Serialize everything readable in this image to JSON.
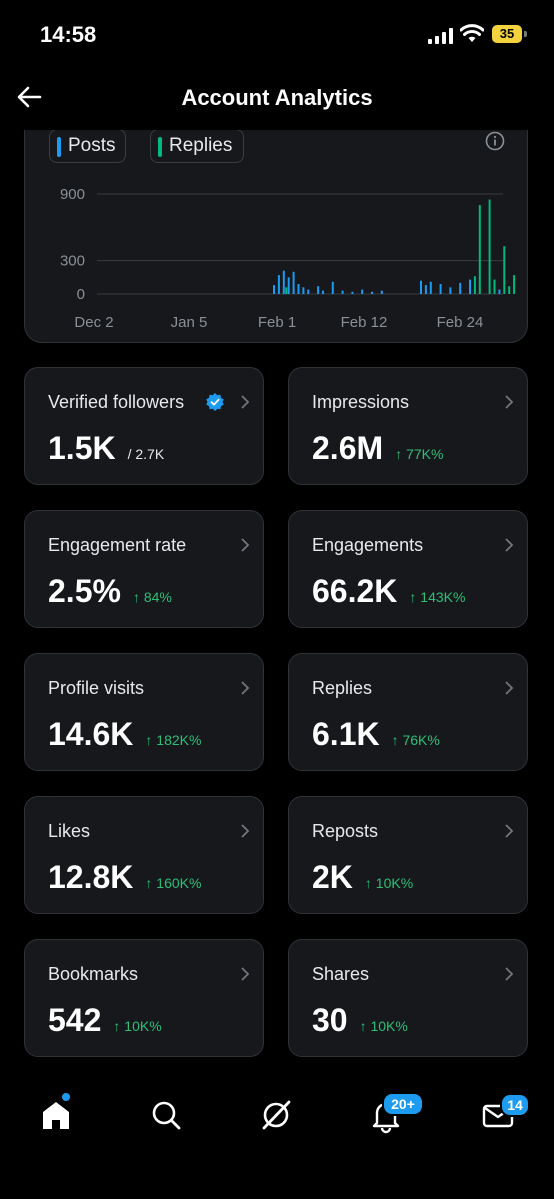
{
  "status_bar": {
    "time": "14:58",
    "battery": "35"
  },
  "header": {
    "title": "Account Analytics"
  },
  "legend": [
    {
      "label": "Posts",
      "color": "#1d9bf0"
    },
    {
      "label": "Replies",
      "color": "#00ba7c"
    }
  ],
  "chart_data": {
    "type": "bar",
    "y_ticks": [
      "900",
      "300",
      "0"
    ],
    "x_ticks": [
      "Dec 2",
      "Jan 5",
      "Feb 1",
      "Feb 12",
      "Feb 24"
    ],
    "ylim": [
      0,
      900
    ],
    "grid": true,
    "series": [
      {
        "name": "Posts",
        "color": "#1d9bf0",
        "points": [
          {
            "day": 0,
            "value": 80
          },
          {
            "day": 1,
            "value": 170
          },
          {
            "day": 2,
            "value": 210
          },
          {
            "day": 3,
            "value": 150
          },
          {
            "day": 4,
            "value": 200
          },
          {
            "day": 5,
            "value": 90
          },
          {
            "day": 6,
            "value": 60
          },
          {
            "day": 7,
            "value": 40
          },
          {
            "day": 9,
            "value": 70
          },
          {
            "day": 10,
            "value": 30
          },
          {
            "day": 12,
            "value": 110
          },
          {
            "day": 14,
            "value": 30
          },
          {
            "day": 16,
            "value": 20
          },
          {
            "day": 18,
            "value": 40
          },
          {
            "day": 20,
            "value": 20
          },
          {
            "day": 22,
            "value": 30
          },
          {
            "day": 30,
            "value": 120
          },
          {
            "day": 31,
            "value": 80
          },
          {
            "day": 32,
            "value": 110
          },
          {
            "day": 34,
            "value": 90
          },
          {
            "day": 36,
            "value": 60
          },
          {
            "day": 38,
            "value": 100
          },
          {
            "day": 40,
            "value": 130
          },
          {
            "day": 46,
            "value": 40
          }
        ]
      },
      {
        "name": "Replies",
        "color": "#00ba7c",
        "points": [
          {
            "day": 2.5,
            "value": 60
          },
          {
            "day": 41,
            "value": 160
          },
          {
            "day": 42,
            "value": 800
          },
          {
            "day": 44,
            "value": 850
          },
          {
            "day": 45,
            "value": 130
          },
          {
            "day": 47,
            "value": 430
          },
          {
            "day": 48,
            "value": 70
          },
          {
            "day": 49,
            "value": 170
          }
        ]
      }
    ]
  },
  "stats": [
    {
      "label": "Verified followers",
      "value": "1.5K",
      "sub": "/ 2.7K",
      "change": ""
    },
    {
      "label": "Impressions",
      "value": "2.6M",
      "sub": "",
      "change": "↑ 77K%"
    },
    {
      "label": "Engagement rate",
      "value": "2.5%",
      "sub": "",
      "change": "↑ 84%"
    },
    {
      "label": "Engagements",
      "value": "66.2K",
      "sub": "",
      "change": "↑ 143K%"
    },
    {
      "label": "Profile visits",
      "value": "14.6K",
      "sub": "",
      "change": "↑ 182K%"
    },
    {
      "label": "Replies",
      "value": "6.1K",
      "sub": "",
      "change": "↑ 76K%"
    },
    {
      "label": "Likes",
      "value": "12.8K",
      "sub": "",
      "change": "↑ 160K%"
    },
    {
      "label": "Reposts",
      "value": "2K",
      "sub": "",
      "change": "↑ 10K%"
    },
    {
      "label": "Bookmarks",
      "value": "542",
      "sub": "",
      "change": "↑ 10K%"
    },
    {
      "label": "Shares",
      "value": "30",
      "sub": "",
      "change": "↑ 10K%"
    }
  ],
  "nav": {
    "items": [
      "home-icon",
      "search-icon",
      "grok-icon",
      "notifications-icon",
      "messages-icon"
    ],
    "notifications_badge": "20+",
    "messages_badge": "14"
  }
}
